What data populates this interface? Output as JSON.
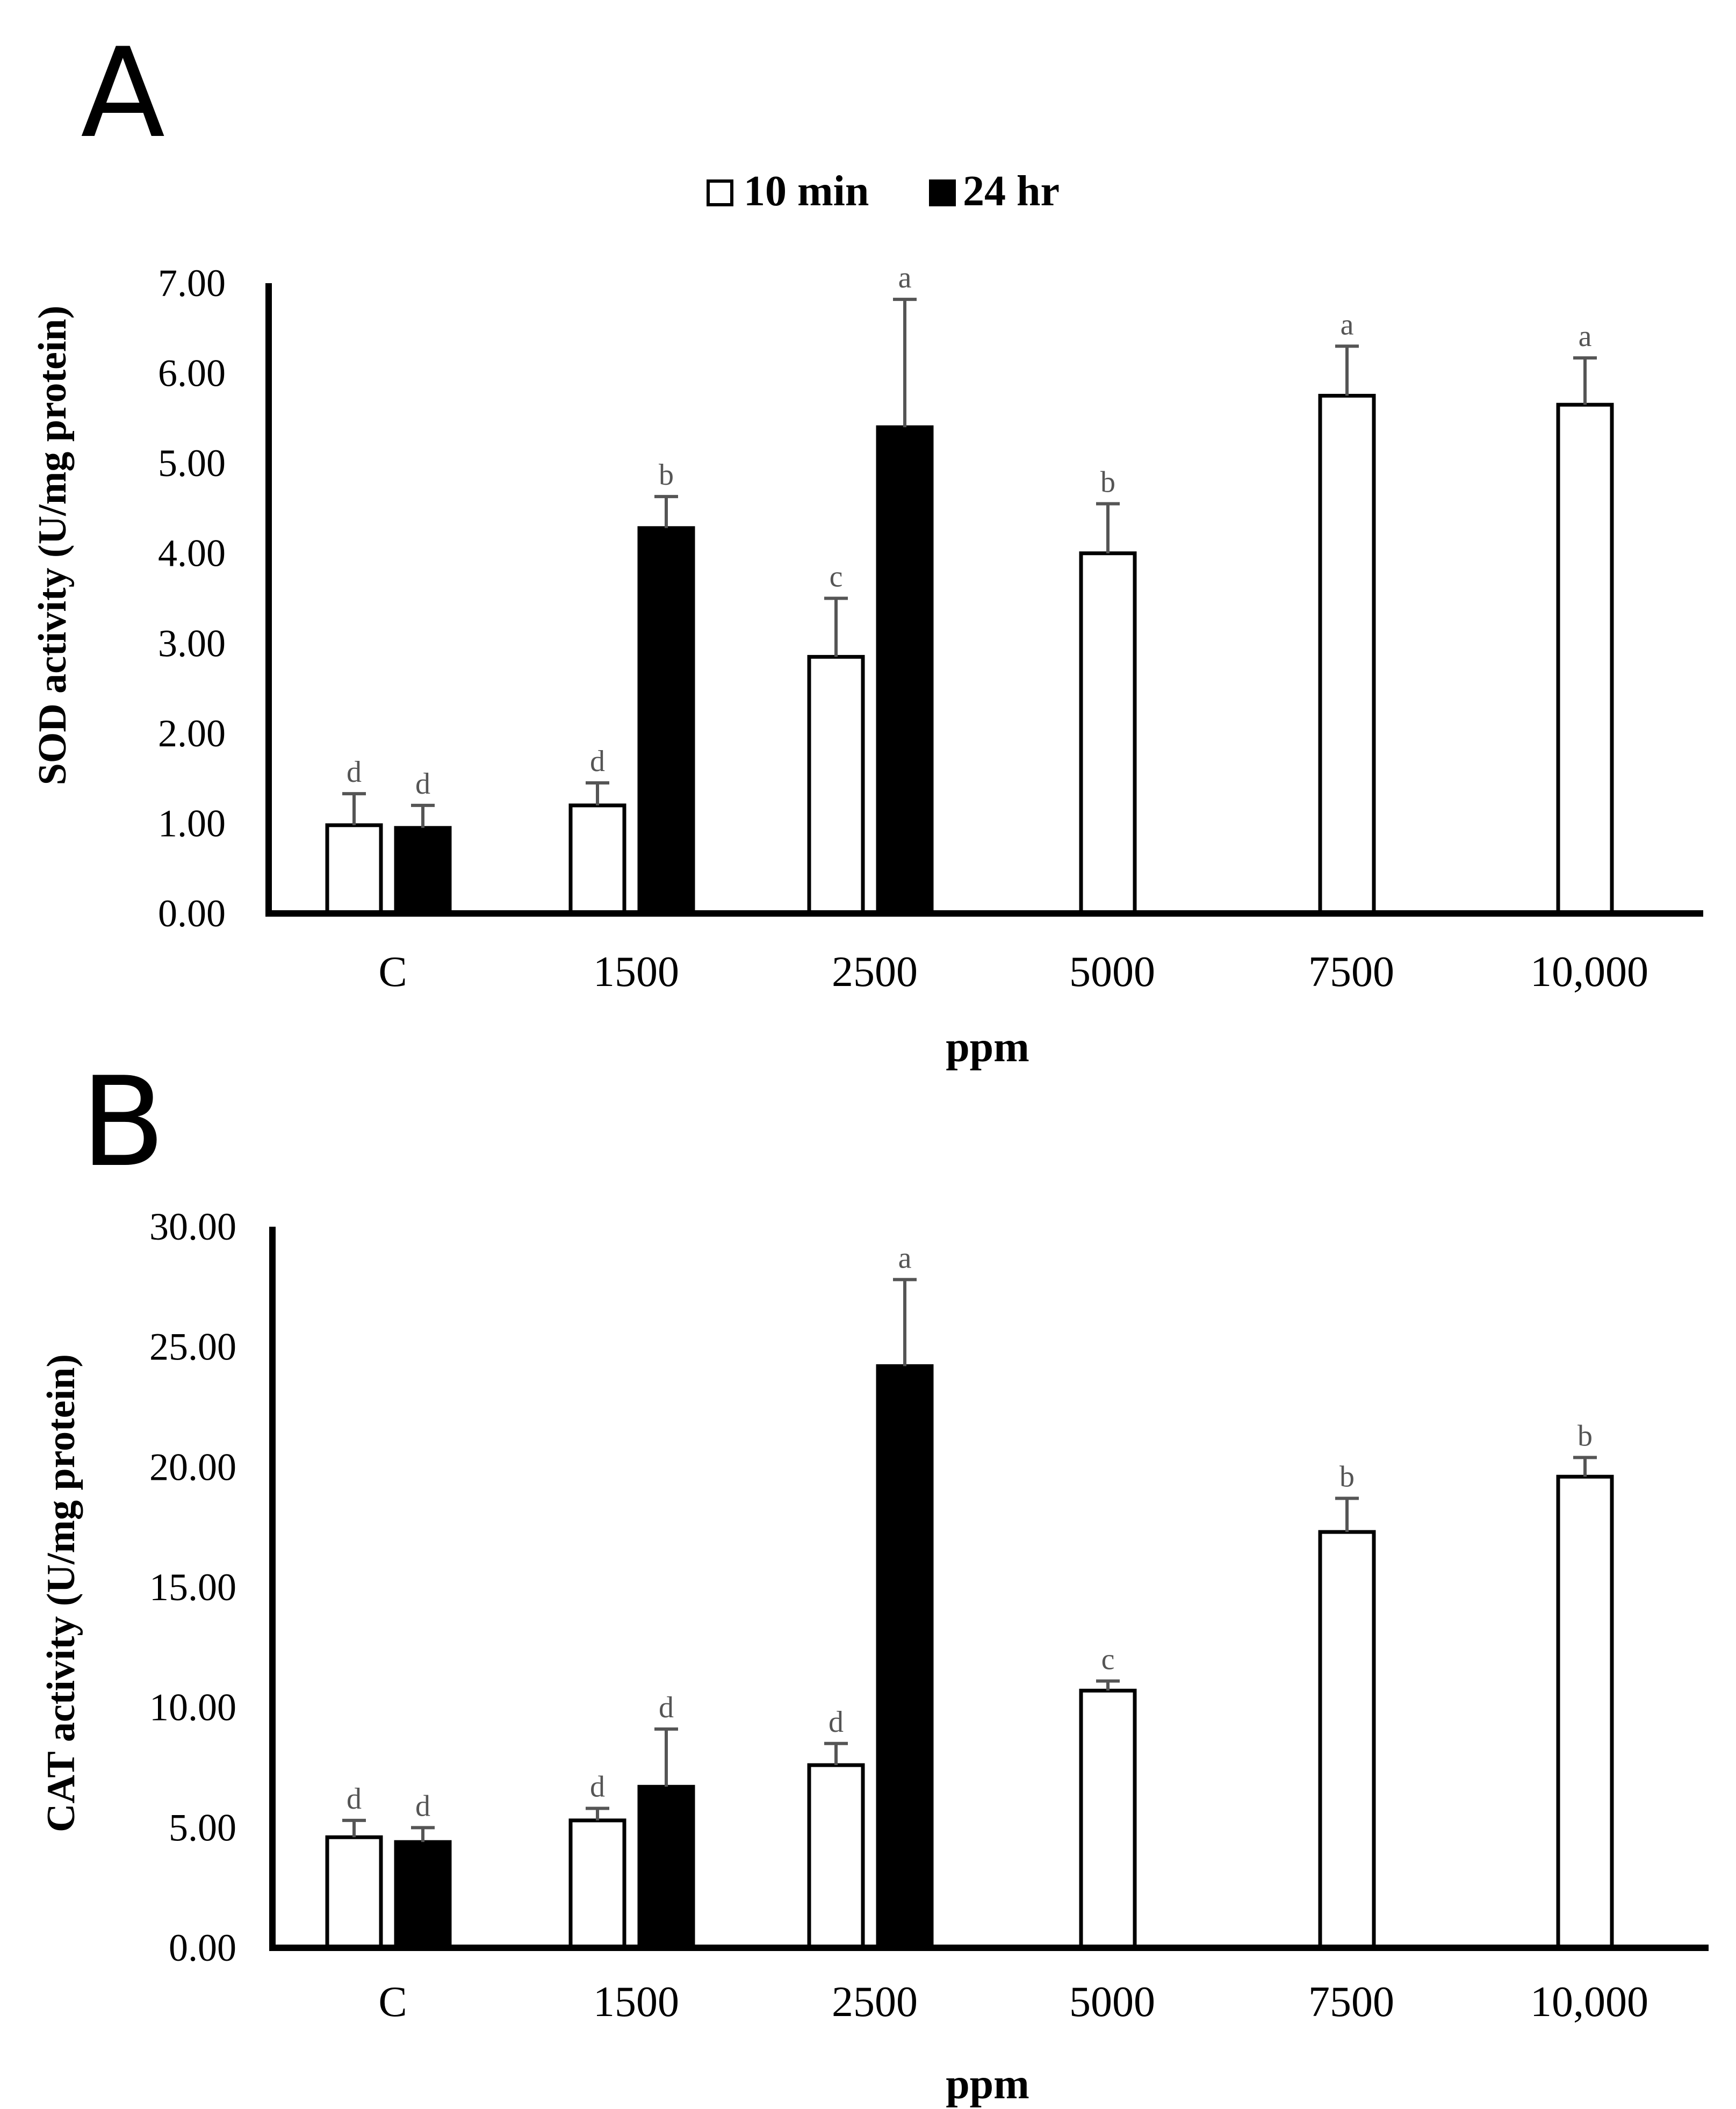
{
  "legend": [
    {
      "label": "10 min",
      "fill": "#ffffff"
    },
    {
      "label": "24 hr",
      "fill": "#000000"
    }
  ],
  "colors": {
    "ten_min": "#ffffff",
    "twenty_four_hr": "#000000",
    "error_bar": "#555555",
    "sig_letter": "#555555",
    "axis": "#000000"
  },
  "chart_data": [
    {
      "panel": "A",
      "type": "bar",
      "title": "",
      "xlabel": "ppm",
      "ylabel": "SOD activity (U/mg protein)",
      "categories": [
        "C",
        "1500",
        "2500",
        "5000",
        "7500",
        "10,000"
      ],
      "ylim": [
        0,
        7
      ],
      "yticks": [
        "0.00",
        "1.00",
        "2.00",
        "3.00",
        "4.00",
        "5.00",
        "6.00",
        "7.00"
      ],
      "series": [
        {
          "name": "10 min",
          "values": [
            0.98,
            1.2,
            2.85,
            4.0,
            5.75,
            5.65
          ],
          "errors": [
            0.35,
            0.25,
            0.65,
            0.55,
            0.55,
            0.52
          ],
          "letters": [
            "d",
            "d",
            "c",
            "b",
            "a",
            "a"
          ]
        },
        {
          "name": "24 hr",
          "values": [
            0.95,
            4.28,
            5.4,
            null,
            null,
            null
          ],
          "errors": [
            0.25,
            0.35,
            1.42,
            null,
            null,
            null
          ],
          "letters": [
            "d",
            "b",
            "a",
            null,
            null,
            null
          ]
        }
      ]
    },
    {
      "panel": "B",
      "type": "bar",
      "title": "",
      "xlabel": "ppm",
      "ylabel": "CAT activity (U/mg protein)",
      "categories": [
        "C",
        "1500",
        "2500",
        "5000",
        "7500",
        "10,000"
      ],
      "ylim": [
        0,
        30
      ],
      "yticks": [
        "0.00",
        "5.00",
        "10.00",
        "15.00",
        "20.00",
        "25.00",
        "30.00"
      ],
      "series": [
        {
          "name": "10 min",
          "values": [
            4.6,
            5.3,
            7.6,
            10.7,
            17.3,
            19.6
          ],
          "errors": [
            0.7,
            0.5,
            0.9,
            0.4,
            1.4,
            0.8
          ],
          "letters": [
            "d",
            "d",
            "d",
            "c",
            "b",
            "b"
          ]
        },
        {
          "name": "24 hr",
          "values": [
            4.4,
            6.7,
            24.2,
            null,
            null,
            null
          ],
          "errors": [
            0.6,
            2.4,
            3.6,
            null,
            null,
            null
          ],
          "letters": [
            "d",
            "d",
            "a",
            null,
            null,
            null
          ]
        }
      ]
    }
  ]
}
